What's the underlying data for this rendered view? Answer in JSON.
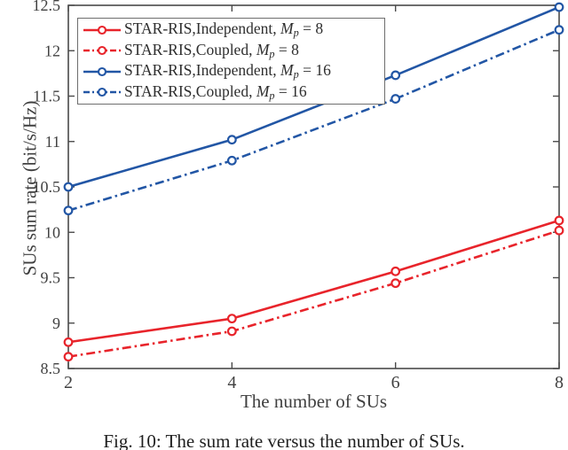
{
  "figure": {
    "background": "#ffffff",
    "axis_color": "#4a4a4a",
    "tick_text_color": "#414141",
    "red": "#e8242b",
    "blue": "#2256a5"
  },
  "chart_data": {
    "type": "line",
    "x": [
      2,
      4,
      6,
      8
    ],
    "xlabel": "The number of SUs",
    "ylabel": "SUs sum rate (bit/s/Hz)",
    "xlim": [
      2,
      8
    ],
    "ylim": [
      8.5,
      12.5
    ],
    "xticks": [
      "2",
      "4",
      "6",
      "8"
    ],
    "yticks": [
      "8.5",
      "9",
      "9.5",
      "10",
      "10.5",
      "11",
      "11.5",
      "12",
      "12.5"
    ],
    "ytick_values": [
      8.5,
      9,
      9.5,
      10,
      10.5,
      11,
      11.5,
      12,
      12.5
    ],
    "grid": false,
    "legend_position": "top-left",
    "series": [
      {
        "name": "STAR-RIS,Independent, Mp = 8",
        "label_prefix": "STAR-RIS,Independent, ",
        "math_var": "M",
        "math_sub": "p",
        "math_rhs": " = 8",
        "color": "#e8242b",
        "style": "solid",
        "marker": "o",
        "values": [
          8.79,
          9.05,
          9.57,
          10.13
        ]
      },
      {
        "name": "STAR-RIS,Coupled, Mp = 8",
        "label_prefix": "STAR-RIS,Coupled, ",
        "math_var": "M",
        "math_sub": "p",
        "math_rhs": " = 8",
        "color": "#e8242b",
        "style": "dashdot",
        "marker": "o",
        "values": [
          8.63,
          8.91,
          9.44,
          10.02
        ]
      },
      {
        "name": "STAR-RIS,Independent, Mp = 16",
        "label_prefix": "STAR-RIS,Independent, ",
        "math_var": "M",
        "math_sub": "p",
        "math_rhs": " = 16",
        "color": "#2256a5",
        "style": "solid",
        "marker": "o",
        "values": [
          10.5,
          11.02,
          11.73,
          12.48
        ]
      },
      {
        "name": "STAR-RIS,Coupled, Mp = 16",
        "label_prefix": "STAR-RIS,Coupled, ",
        "math_var": "M",
        "math_sub": "p",
        "math_rhs": " = 16",
        "color": "#2256a5",
        "style": "dashdot",
        "marker": "o",
        "values": [
          10.24,
          10.79,
          11.47,
          12.23
        ]
      }
    ]
  },
  "caption": {
    "text": "Fig. 10: The sum rate versus the number of SUs."
  }
}
